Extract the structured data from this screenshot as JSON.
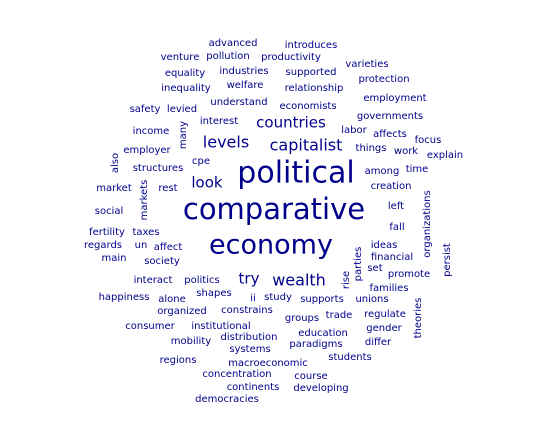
{
  "colors": {
    "word": "#00008B",
    "background": "#FFFFFF"
  },
  "words": [
    {
      "text": "political",
      "weight": 5
    },
    {
      "text": "comparative",
      "weight": 5
    },
    {
      "text": "economy",
      "weight": 5
    },
    {
      "text": "capitalist",
      "weight": 3
    },
    {
      "text": "countries",
      "weight": 3
    },
    {
      "text": "levels",
      "weight": 3
    },
    {
      "text": "wealth",
      "weight": 3
    },
    {
      "text": "look",
      "weight": 3
    },
    {
      "text": "try",
      "weight": 3
    },
    {
      "text": "advanced",
      "weight": 1
    },
    {
      "text": "introduces",
      "weight": 1
    },
    {
      "text": "venture",
      "weight": 1
    },
    {
      "text": "pollution",
      "weight": 1
    },
    {
      "text": "productivity",
      "weight": 1
    },
    {
      "text": "varieties",
      "weight": 1
    },
    {
      "text": "equality",
      "weight": 1
    },
    {
      "text": "industries",
      "weight": 1
    },
    {
      "text": "supported",
      "weight": 1
    },
    {
      "text": "protection",
      "weight": 1
    },
    {
      "text": "inequality",
      "weight": 1
    },
    {
      "text": "welfare",
      "weight": 1
    },
    {
      "text": "relationship",
      "weight": 1
    },
    {
      "text": "understand",
      "weight": 1
    },
    {
      "text": "economists",
      "weight": 1
    },
    {
      "text": "employment",
      "weight": 1
    },
    {
      "text": "safety",
      "weight": 1
    },
    {
      "text": "levied",
      "weight": 1
    },
    {
      "text": "interest",
      "weight": 1
    },
    {
      "text": "governments",
      "weight": 1
    },
    {
      "text": "income",
      "weight": 1
    },
    {
      "text": "many",
      "weight": 1
    },
    {
      "text": "labor",
      "weight": 1
    },
    {
      "text": "affects",
      "weight": 1
    },
    {
      "text": "focus",
      "weight": 1
    },
    {
      "text": "employer",
      "weight": 1
    },
    {
      "text": "things",
      "weight": 1
    },
    {
      "text": "work",
      "weight": 1
    },
    {
      "text": "explain",
      "weight": 1
    },
    {
      "text": "also",
      "weight": 1
    },
    {
      "text": "cpe",
      "weight": 1
    },
    {
      "text": "structures",
      "weight": 1
    },
    {
      "text": "among",
      "weight": 1
    },
    {
      "text": "time",
      "weight": 1
    },
    {
      "text": "market",
      "weight": 1
    },
    {
      "text": "markets",
      "weight": 1
    },
    {
      "text": "rest",
      "weight": 1
    },
    {
      "text": "creation",
      "weight": 1
    },
    {
      "text": "social",
      "weight": 1
    },
    {
      "text": "left",
      "weight": 1
    },
    {
      "text": "organizations",
      "weight": 1
    },
    {
      "text": "fertility",
      "weight": 1
    },
    {
      "text": "taxes",
      "weight": 1
    },
    {
      "text": "fall",
      "weight": 1
    },
    {
      "text": "regards",
      "weight": 1
    },
    {
      "text": "un",
      "weight": 1
    },
    {
      "text": "affect",
      "weight": 1
    },
    {
      "text": "ideas",
      "weight": 1
    },
    {
      "text": "main",
      "weight": 1
    },
    {
      "text": "society",
      "weight": 1
    },
    {
      "text": "financial",
      "weight": 1
    },
    {
      "text": "persist",
      "weight": 1
    },
    {
      "text": "parties",
      "weight": 1
    },
    {
      "text": "set",
      "weight": 1
    },
    {
      "text": "promote",
      "weight": 1
    },
    {
      "text": "interact",
      "weight": 1
    },
    {
      "text": "politics",
      "weight": 1
    },
    {
      "text": "rise",
      "weight": 1
    },
    {
      "text": "families",
      "weight": 1
    },
    {
      "text": "happiness",
      "weight": 1
    },
    {
      "text": "shapes",
      "weight": 1
    },
    {
      "text": "alone",
      "weight": 1
    },
    {
      "text": "ii",
      "weight": 1
    },
    {
      "text": "study",
      "weight": 1
    },
    {
      "text": "supports",
      "weight": 1
    },
    {
      "text": "unions",
      "weight": 1
    },
    {
      "text": "organized",
      "weight": 1
    },
    {
      "text": "constrains",
      "weight": 1
    },
    {
      "text": "groups",
      "weight": 1
    },
    {
      "text": "trade",
      "weight": 1
    },
    {
      "text": "regulate",
      "weight": 1
    },
    {
      "text": "theories",
      "weight": 1
    },
    {
      "text": "consumer",
      "weight": 1
    },
    {
      "text": "institutional",
      "weight": 1
    },
    {
      "text": "education",
      "weight": 1
    },
    {
      "text": "gender",
      "weight": 1
    },
    {
      "text": "mobility",
      "weight": 1
    },
    {
      "text": "distribution",
      "weight": 1
    },
    {
      "text": "paradigms",
      "weight": 1
    },
    {
      "text": "differ",
      "weight": 1
    },
    {
      "text": "systems",
      "weight": 1
    },
    {
      "text": "regions",
      "weight": 1
    },
    {
      "text": "macroeconomic",
      "weight": 1
    },
    {
      "text": "students",
      "weight": 1
    },
    {
      "text": "concentration",
      "weight": 1
    },
    {
      "text": "course",
      "weight": 1
    },
    {
      "text": "continents",
      "weight": 1
    },
    {
      "text": "developing",
      "weight": 1
    },
    {
      "text": "democracies",
      "weight": 1
    }
  ]
}
